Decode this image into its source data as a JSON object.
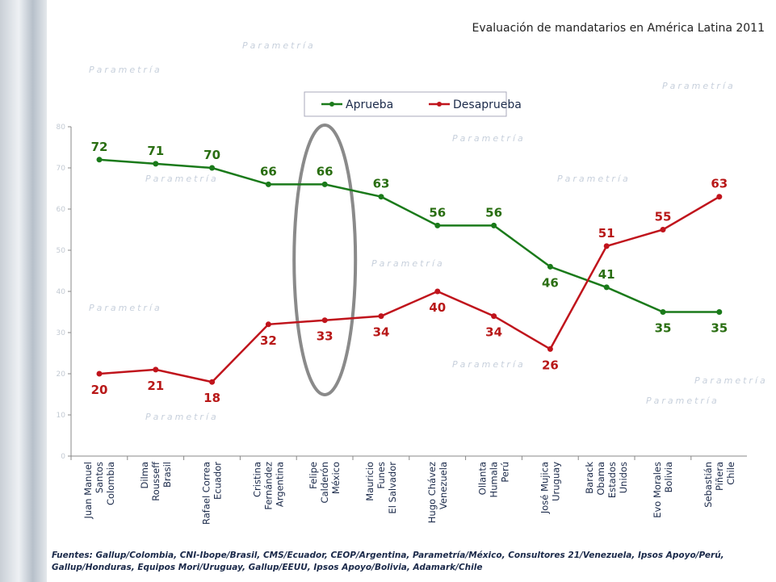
{
  "title": "Evaluación de mandatarios en América Latina 2011",
  "footer": "Fuentes: Gallup/Colombia, CNI-Ibope/Brasil, CMS/Ecuador, CEOP/Argentina, Parametría/México, Consultores 21/Venezuela, Ipsos Apoyo/Perú, Gallup/Honduras, Equipos Mori/Uruguay, Gallup/EEUU, Ipsos Apoyo/Bolivia, Adamark/Chile",
  "watermark": "Parametría",
  "chart_data": {
    "type": "line",
    "title": "Evaluación de mandatarios en América Latina 2011",
    "categories": [
      [
        "Juan Manuel",
        "Santos",
        "Colombia"
      ],
      [
        "Dilma",
        "Rousseff",
        "Brasil"
      ],
      [
        "Rafael Correa",
        "Ecuador"
      ],
      [
        "Cristina",
        "Fernández",
        "Argentina"
      ],
      [
        "Felipe",
        "Calderón",
        "México"
      ],
      [
        "Mauricio",
        "Funes",
        "El Salvador"
      ],
      [
        "Hugo Chávez",
        "Venezuela"
      ],
      [
        "Ollanta",
        "Humala",
        "Perú"
      ],
      [
        "José Mujica",
        "Uruguay"
      ],
      [
        "Barack",
        "Obama",
        "Estados",
        "Unidos"
      ],
      [
        "Evo Morales",
        "Bolivia"
      ],
      [
        "Sebastián",
        "Piñera",
        "Chile"
      ]
    ],
    "series": [
      {
        "name": "Aprueba",
        "color": "#1a7a1a",
        "label_color": "#2a6e12",
        "values": [
          72,
          71,
          70,
          66,
          66,
          63,
          56,
          56,
          46,
          41,
          35,
          35
        ]
      },
      {
        "name": "Desaprueba",
        "color": "#c0141c",
        "label_color": "#b81818",
        "values": [
          20,
          21,
          18,
          32,
          33,
          34,
          40,
          34,
          26,
          51,
          55,
          63
        ]
      }
    ],
    "ylim": [
      0,
      80
    ],
    "yticks": [
      0,
      10,
      20,
      30,
      40,
      50,
      60,
      70,
      80
    ],
    "legend": "top-center",
    "grid": false,
    "highlight": "Felipe Calderón (México) circled"
  }
}
